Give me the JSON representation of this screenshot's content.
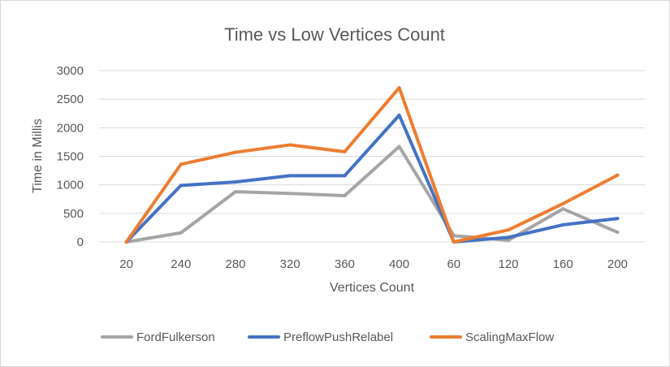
{
  "chart_data": {
    "type": "line",
    "title": "Time vs Low Vertices Count",
    "xlabel": "Vertices Count",
    "ylabel": "Time in Millis",
    "categories": [
      "20",
      "240",
      "280",
      "320",
      "360",
      "400",
      "60",
      "120",
      "160",
      "200"
    ],
    "ylim": [
      0,
      3000
    ],
    "yticks": [
      0,
      500,
      1000,
      1500,
      2000,
      2500,
      3000
    ],
    "grid": true,
    "legend_position": "bottom",
    "series": [
      {
        "name": "FordFulkerson",
        "color": "#a5a5a5",
        "values": [
          0,
          160,
          880,
          850,
          810,
          1670,
          110,
          30,
          580,
          170
        ]
      },
      {
        "name": "PreflowPushRelabel",
        "color": "#4472c4",
        "values": [
          0,
          990,
          1050,
          1160,
          1160,
          2220,
          0,
          80,
          300,
          410
        ]
      },
      {
        "name": "ScalingMaxFlow",
        "color": "#ed7d31",
        "values": [
          0,
          1360,
          1570,
          1700,
          1580,
          2700,
          0,
          210,
          670,
          1170
        ]
      }
    ]
  }
}
